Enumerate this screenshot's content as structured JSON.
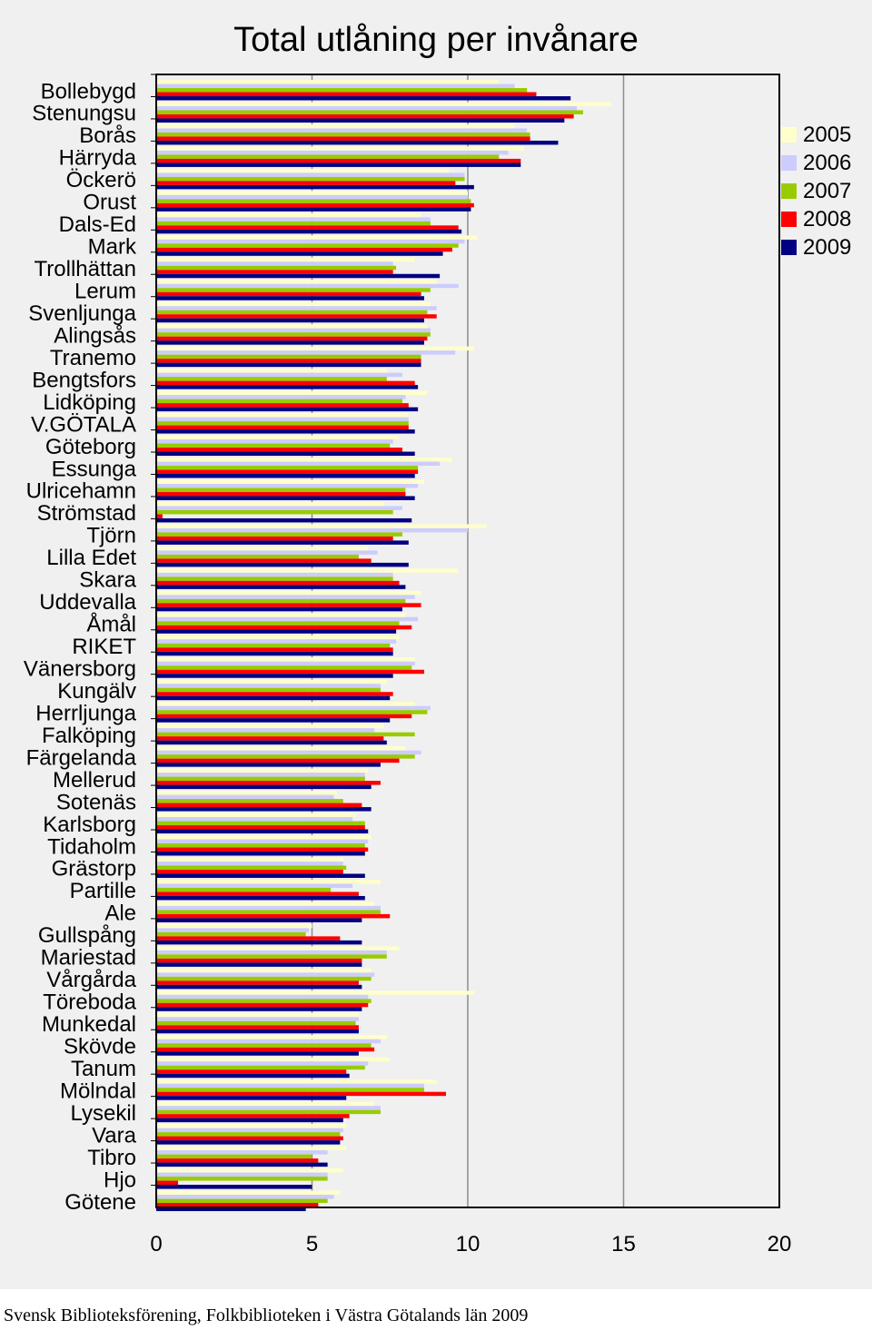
{
  "chart_data": {
    "type": "bar",
    "orientation": "horizontal",
    "title": "Total utlåning per invånare",
    "xlabel": "",
    "ylabel": "",
    "xlim": [
      0,
      20
    ],
    "x_ticks": [
      "0",
      "5",
      "10",
      "15",
      "20"
    ],
    "grid": "vertical gridlines at 5, 10, 15",
    "legend_position": "right-top",
    "categories": [
      "Bollebygd",
      "Stenungsu",
      "Borås",
      "Härryda",
      "Öckerö",
      "Orust",
      "Dals-Ed",
      "Mark",
      "Trollhättan",
      "Lerum",
      "Svenljunga",
      "Alingsås",
      "Tranemo",
      "Bengtsfors",
      "Lidköping",
      "V.GÖTALA",
      "Göteborg",
      "Essunga",
      "Ulricehamn",
      "Strömstad",
      "Tjörn",
      "Lilla Edet",
      "Skara",
      "Uddevalla",
      "Åmål",
      "RIKET",
      "Vänersborg",
      "Kungälv",
      "Herrljunga",
      "Falköping",
      "Färgelanda",
      "Mellerud",
      "Sotenäs",
      "Karlsborg",
      "Tidaholm",
      "Grästorp",
      "Partille",
      "Ale",
      "Gullspång",
      "Mariestad",
      "Vårgårda",
      "Töreboda",
      "Munkedal",
      "Skövde",
      "Tanum",
      "Mölndal",
      "Lysekil",
      "Vara",
      "Tibro",
      "Hjo",
      "Götene"
    ],
    "series": [
      {
        "name": "2005",
        "color": "#ffffcc",
        "values": [
          11.0,
          14.6,
          11.5,
          11.8,
          9.4,
          10.0,
          8.5,
          10.3,
          8.3,
          9.0,
          8.8,
          8.7,
          10.2,
          7.4,
          8.7,
          8.1,
          7.8,
          9.5,
          8.6,
          7.3,
          10.6,
          6.8,
          9.7,
          8.5,
          8.0,
          7.8,
          8.3,
          7.4,
          8.3,
          7.3,
          8.0,
          6.8,
          5.8,
          6.4,
          6.9,
          6.0,
          7.2,
          7.0,
          5.0,
          7.8,
          6.9,
          10.2,
          6.5,
          7.4,
          7.5,
          9.0,
          7.0,
          6.1,
          6.1,
          6.0,
          5.9
        ]
      },
      {
        "name": "2006",
        "color": "#ccccff",
        "values": [
          11.5,
          13.5,
          11.9,
          11.3,
          9.9,
          10.0,
          8.8,
          9.9,
          7.6,
          9.7,
          9.0,
          8.8,
          9.6,
          7.9,
          8.0,
          8.1,
          7.6,
          9.1,
          8.4,
          7.9,
          10.0,
          7.1,
          7.6,
          8.3,
          8.4,
          7.7,
          8.3,
          7.2,
          8.8,
          7.0,
          8.5,
          6.7,
          5.7,
          6.3,
          6.8,
          6.0,
          6.3,
          7.2,
          4.9,
          7.4,
          7.0,
          6.8,
          6.5,
          7.2,
          6.8,
          8.6,
          7.2,
          6.0,
          5.5,
          5.5,
          5.7
        ]
      },
      {
        "name": "2007",
        "color": "#99cc00",
        "values": [
          11.9,
          13.7,
          12.0,
          11.0,
          9.9,
          10.1,
          8.8,
          9.7,
          7.7,
          8.8,
          8.7,
          8.8,
          8.5,
          7.4,
          7.9,
          8.1,
          7.5,
          8.4,
          8.0,
          7.6,
          7.9,
          6.5,
          7.6,
          8.0,
          7.8,
          7.5,
          8.2,
          7.2,
          8.7,
          8.3,
          8.3,
          6.7,
          6.0,
          6.7,
          6.7,
          6.1,
          5.6,
          7.2,
          4.8,
          7.4,
          6.9,
          6.9,
          6.4,
          6.9,
          6.7,
          8.6,
          7.2,
          5.9,
          5.0,
          5.5,
          5.5
        ]
      },
      {
        "name": "2008",
        "color": "#ff0000",
        "values": [
          12.2,
          13.4,
          12.0,
          11.7,
          9.6,
          10.2,
          9.7,
          9.5,
          7.6,
          8.5,
          9.0,
          8.7,
          8.5,
          8.3,
          8.1,
          8.1,
          7.9,
          8.4,
          8.0,
          0.2,
          7.6,
          6.9,
          7.8,
          8.5,
          8.2,
          7.6,
          8.6,
          7.6,
          8.2,
          7.3,
          7.8,
          7.2,
          6.6,
          6.7,
          6.8,
          6.0,
          6.5,
          7.5,
          5.9,
          6.6,
          6.5,
          6.8,
          6.5,
          7.0,
          6.1,
          9.3,
          6.2,
          6.0,
          5.2,
          0.7,
          5.2
        ]
      },
      {
        "name": "2009",
        "color": "#000080",
        "values": [
          13.3,
          13.1,
          12.9,
          11.7,
          10.2,
          10.1,
          9.8,
          9.2,
          9.1,
          8.6,
          8.6,
          8.6,
          8.5,
          8.4,
          8.4,
          8.3,
          8.3,
          8.3,
          8.3,
          8.2,
          8.1,
          8.1,
          8.0,
          7.9,
          7.7,
          7.6,
          7.6,
          7.5,
          7.5,
          7.4,
          7.2,
          6.9,
          6.9,
          6.8,
          6.7,
          6.7,
          6.7,
          6.6,
          6.6,
          6.6,
          6.6,
          6.6,
          6.5,
          6.5,
          6.2,
          6.1,
          6.0,
          5.9,
          5.5,
          5.0,
          4.8
        ]
      }
    ]
  },
  "source_note": "Svensk Biblioteksförening, Folkbiblioteken i Västra Götalands län 2009"
}
